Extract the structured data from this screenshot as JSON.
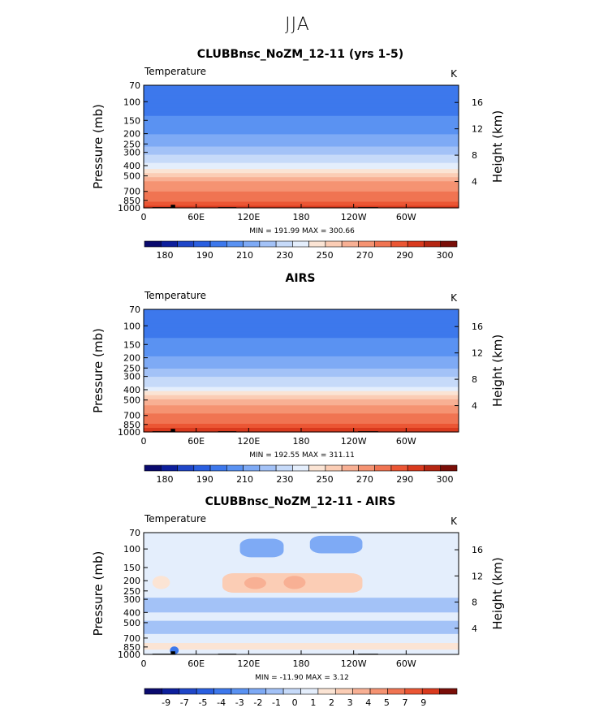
{
  "figure": {
    "suptitle": "JJA"
  },
  "chart_data": [
    {
      "type": "heatmap",
      "title": "CLUBBnsc_NoZM_12-11 (yrs 1-5)",
      "variable_label": "Temperature",
      "units_label": "K",
      "xlabel": "",
      "ylabel": "Pressure (mb)",
      "ylabel_right": "Height (km)",
      "x_ticks": [
        "0",
        "60E",
        "120E",
        "180",
        "120W",
        "60W"
      ],
      "x_tick_values": [
        0,
        60,
        120,
        180,
        240,
        300
      ],
      "xlim": [
        0,
        360
      ],
      "y_ticks": [
        "70",
        "100",
        "150",
        "200",
        "250",
        "300",
        "400",
        "500",
        "700",
        "850",
        "1000"
      ],
      "y_tick_values": [
        70,
        100,
        150,
        200,
        250,
        300,
        400,
        500,
        700,
        850,
        1000
      ],
      "ylim": [
        70,
        1000
      ],
      "height_ticks": [
        "16",
        "12",
        "8",
        "4"
      ],
      "height_tick_values": [
        16,
        12,
        8,
        4
      ],
      "stats_text": "MIN = 191.99   MAX = 300.66",
      "min": 191.99,
      "max": 300.66,
      "colorbar_labels": [
        "180",
        "190",
        "210",
        "230",
        "250",
        "270",
        "290",
        "300"
      ],
      "colorbar_colors": [
        "#0a0a6e",
        "#0d1f9c",
        "#1f46c8",
        "#2a5fe0",
        "#3d78ec",
        "#5a92f2",
        "#7eaaf5",
        "#a3c2f7",
        "#c6daf9",
        "#e4eefc",
        "#fbe4d4",
        "#fbcdb5",
        "#f8b094",
        "#f59372",
        "#f07452",
        "#eb5634",
        "#d93a1e",
        "#b52612",
        "#7a0e08"
      ],
      "colorbar_levels": [
        170,
        180,
        185,
        190,
        200,
        210,
        220,
        230,
        240,
        250,
        255,
        260,
        265,
        270,
        280,
        290,
        295,
        300,
        305,
        310
      ],
      "vertical_profile": [
        {
          "p": 70,
          "value": 206
        },
        {
          "p": 100,
          "value": 204
        },
        {
          "p": 150,
          "value": 212
        },
        {
          "p": 200,
          "value": 220
        },
        {
          "p": 250,
          "value": 228
        },
        {
          "p": 300,
          "value": 238
        },
        {
          "p": 400,
          "value": 252
        },
        {
          "p": 500,
          "value": 264
        },
        {
          "p": 700,
          "value": 280
        },
        {
          "p": 850,
          "value": 289
        },
        {
          "p": 1000,
          "value": 298
        }
      ]
    },
    {
      "type": "heatmap",
      "title": "AIRS",
      "variable_label": "Temperature",
      "units_label": "K",
      "xlabel": "",
      "ylabel": "Pressure (mb)",
      "ylabel_right": "Height (km)",
      "x_ticks": [
        "0",
        "60E",
        "120E",
        "180",
        "120W",
        "60W"
      ],
      "x_tick_values": [
        0,
        60,
        120,
        180,
        240,
        300
      ],
      "xlim": [
        0,
        360
      ],
      "y_ticks": [
        "70",
        "100",
        "150",
        "200",
        "250",
        "300",
        "400",
        "500",
        "700",
        "850",
        "1000"
      ],
      "y_tick_values": [
        70,
        100,
        150,
        200,
        250,
        300,
        400,
        500,
        700,
        850,
        1000
      ],
      "ylim": [
        70,
        1000
      ],
      "height_ticks": [
        "16",
        "12",
        "8",
        "4"
      ],
      "height_tick_values": [
        16,
        12,
        8,
        4
      ],
      "stats_text": "MIN = 192.55   MAX = 311.11",
      "min": 192.55,
      "max": 311.11,
      "colorbar_labels": [
        "180",
        "190",
        "210",
        "230",
        "250",
        "270",
        "290",
        "300"
      ],
      "colorbar_colors": [
        "#0a0a6e",
        "#0d1f9c",
        "#1f46c8",
        "#2a5fe0",
        "#3d78ec",
        "#5a92f2",
        "#7eaaf5",
        "#a3c2f7",
        "#c6daf9",
        "#e4eefc",
        "#fbe4d4",
        "#fbcdb5",
        "#f8b094",
        "#f59372",
        "#f07452",
        "#eb5634",
        "#d93a1e",
        "#b52612",
        "#7a0e08"
      ],
      "colorbar_levels": [
        170,
        180,
        185,
        190,
        200,
        210,
        220,
        230,
        240,
        250,
        255,
        260,
        265,
        270,
        280,
        290,
        295,
        300,
        305,
        310
      ],
      "vertical_profile": [
        {
          "p": 70,
          "value": 207
        },
        {
          "p": 100,
          "value": 205
        },
        {
          "p": 150,
          "value": 213
        },
        {
          "p": 200,
          "value": 221
        },
        {
          "p": 250,
          "value": 229
        },
        {
          "p": 300,
          "value": 239
        },
        {
          "p": 400,
          "value": 253
        },
        {
          "p": 500,
          "value": 265
        },
        {
          "p": 700,
          "value": 281
        },
        {
          "p": 850,
          "value": 290
        },
        {
          "p": 1000,
          "value": 300
        }
      ]
    },
    {
      "type": "heatmap",
      "title": "CLUBBnsc_NoZM_12-11 - AIRS",
      "variable_label": "Temperature",
      "units_label": "K",
      "xlabel": "",
      "ylabel": "Pressure (mb)",
      "ylabel_right": "Height (km)",
      "x_ticks": [
        "0",
        "60E",
        "120E",
        "180",
        "120W",
        "60W"
      ],
      "x_tick_values": [
        0,
        60,
        120,
        180,
        240,
        300
      ],
      "xlim": [
        0,
        360
      ],
      "y_ticks": [
        "70",
        "100",
        "150",
        "200",
        "250",
        "300",
        "400",
        "500",
        "700",
        "850",
        "1000"
      ],
      "y_tick_values": [
        70,
        100,
        150,
        200,
        250,
        300,
        400,
        500,
        700,
        850,
        1000
      ],
      "ylim": [
        70,
        1000
      ],
      "height_ticks": [
        "16",
        "12",
        "8",
        "4"
      ],
      "height_tick_values": [
        16,
        12,
        8,
        4
      ],
      "stats_text": "MIN = -11.90   MAX =    3.12",
      "min": -11.9,
      "max": 3.12,
      "colorbar_labels": [
        "-9",
        "-7",
        "-5",
        "-4",
        "-3",
        "-2",
        "-1",
        "0",
        "1",
        "2",
        "3",
        "4",
        "5",
        "7",
        "9"
      ],
      "colorbar_colors": [
        "#0a0a6e",
        "#0d1f9c",
        "#1f46c8",
        "#2a5fe0",
        "#3d78ec",
        "#5a92f2",
        "#7eaaf5",
        "#a3c2f7",
        "#c6daf9",
        "#e4eefc",
        "#fbe4d4",
        "#fbcdb5",
        "#f8b094",
        "#f59372",
        "#f07452",
        "#eb5634",
        "#d93a1e",
        "#7a0e08"
      ],
      "colorbar_levels": [
        -11,
        -9,
        -7,
        -5,
        -4,
        -3,
        -2,
        -1,
        -0.5,
        0,
        0.5,
        1,
        2,
        3,
        4,
        5,
        7,
        9,
        11
      ],
      "anomaly_regions": [
        {
          "lon": [
            0,
            360
          ],
          "p": [
            70,
            1000
          ],
          "value": 0.2
        },
        {
          "lon": [
            90,
            250
          ],
          "p": [
            170,
            260
          ],
          "value": 1.2
        },
        {
          "lon": [
            115,
            140
          ],
          "p": [
            185,
            240
          ],
          "value": 2.2
        },
        {
          "lon": [
            160,
            185
          ],
          "p": [
            180,
            240
          ],
          "value": 2.2
        },
        {
          "lon": [
            10,
            30
          ],
          "p": [
            180,
            240
          ],
          "value": 0.8
        },
        {
          "lon": [
            110,
            160
          ],
          "p": [
            80,
            120
          ],
          "value": -1.2
        },
        {
          "lon": [
            190,
            250
          ],
          "p": [
            75,
            110
          ],
          "value": -1.2
        },
        {
          "lon": [
            0,
            360
          ],
          "p": [
            290,
            400
          ],
          "value": -0.6
        },
        {
          "lon": [
            0,
            360
          ],
          "p": [
            480,
            640
          ],
          "value": -0.6
        },
        {
          "lon": [
            0,
            360
          ],
          "p": [
            780,
            900
          ],
          "value": 0.6
        },
        {
          "lon": [
            30,
            40
          ],
          "p": [
            840,
            1000
          ],
          "value": -3.5
        }
      ]
    }
  ],
  "colors": {
    "land": "#000000",
    "axes": "#000000"
  }
}
